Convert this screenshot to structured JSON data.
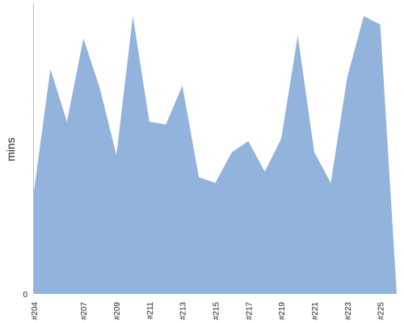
{
  "chart_data": {
    "type": "area",
    "title": "",
    "xlabel": "",
    "ylabel": "mins",
    "ylim": [
      0,
      100
    ],
    "y_ticks": [
      "0"
    ],
    "grid": false,
    "legend": "none",
    "fill_color": "#91b3dc",
    "axis_color": "#bdbdbd",
    "x_ticks": [
      "#204",
      "#207",
      "#209",
      "#211",
      "#213",
      "#215",
      "#217",
      "#219",
      "#221",
      "#223",
      "#225"
    ],
    "series": [
      {
        "name": "",
        "x": [
          "#204",
          "#205",
          "#206",
          "#207",
          "#208",
          "#209",
          "#210",
          "#211",
          "#212",
          "#213",
          "#214",
          "#215",
          "#216",
          "#217",
          "#218",
          "#219",
          "#220",
          "#221",
          "#222",
          "#223",
          "#224",
          "#225",
          "#226"
        ],
        "values": [
          37,
          81,
          62,
          92,
          74,
          50,
          100,
          62,
          61,
          75,
          42,
          40,
          51,
          55,
          44,
          56,
          93,
          51,
          40,
          78,
          100,
          97,
          0
        ]
      }
    ]
  }
}
